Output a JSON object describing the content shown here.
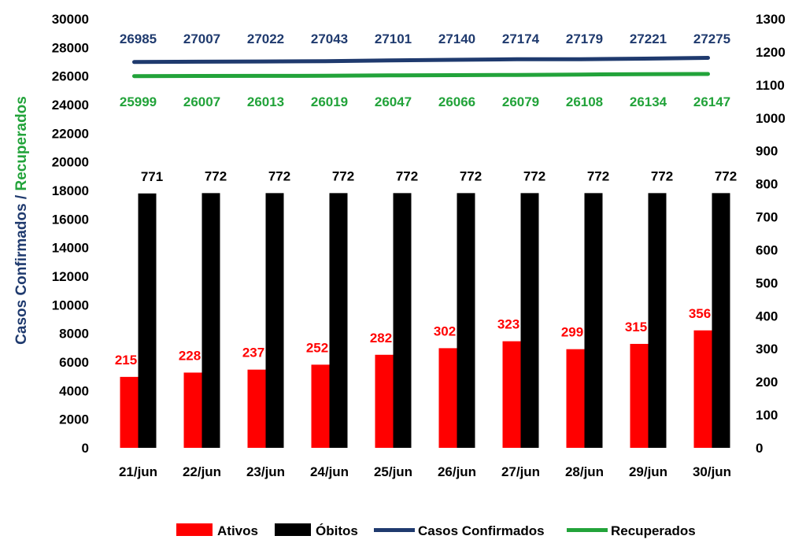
{
  "chart_data": {
    "type": "bar",
    "categories": [
      "21/jun",
      "22/jun",
      "23/jun",
      "24/jun",
      "25/jun",
      "26/jun",
      "27/jun",
      "28/jun",
      "29/jun",
      "30/jun"
    ],
    "series": [
      {
        "name": "Ativos",
        "kind": "bar",
        "axis": "right",
        "color": "#ff0000",
        "values": [
          215,
          228,
          237,
          252,
          282,
          302,
          323,
          299,
          315,
          356
        ]
      },
      {
        "name": "Óbitos",
        "kind": "bar",
        "axis": "right",
        "color": "#000000",
        "values": [
          771,
          772,
          772,
          772,
          772,
          772,
          772,
          772,
          772,
          772
        ]
      },
      {
        "name": "Casos Confirmados",
        "kind": "line",
        "axis": "left",
        "color": "#1f3a6e",
        "values": [
          26985,
          27007,
          27022,
          27043,
          27101,
          27140,
          27174,
          27179,
          27221,
          27275
        ]
      },
      {
        "name": "Recuperados",
        "kind": "line",
        "axis": "left",
        "color": "#22a33a",
        "values": [
          25999,
          26007,
          26013,
          26019,
          26047,
          26066,
          26079,
          26108,
          26134,
          26147
        ]
      }
    ],
    "left_axis": {
      "label_part1": "Casos Confirmados",
      "separator": " / ",
      "label_part2": "Recuperados",
      "ylim": [
        0,
        30000
      ],
      "ticks": [
        "0",
        "2000",
        "4000",
        "6000",
        "8000",
        "10000",
        "12000",
        "14000",
        "16000",
        "18000",
        "20000",
        "22000",
        "24000",
        "26000",
        "28000",
        "30000"
      ]
    },
    "right_axis": {
      "ylim": [
        0,
        1300
      ],
      "ticks": [
        "0",
        "100",
        "200",
        "300",
        "400",
        "500",
        "600",
        "700",
        "800",
        "900",
        "1000",
        "1100",
        "1200",
        "1300"
      ]
    },
    "grid": false,
    "legend_position": "bottom"
  },
  "legend": {
    "items": [
      {
        "label": "Ativos",
        "color": "#ff0000",
        "kind": "box"
      },
      {
        "label": "Óbitos",
        "color": "#000000",
        "kind": "box"
      },
      {
        "label": "Casos Confirmados",
        "color": "#1f3a6e",
        "kind": "line"
      },
      {
        "label": "Recuperados",
        "color": "#22a33a",
        "kind": "line"
      }
    ]
  }
}
